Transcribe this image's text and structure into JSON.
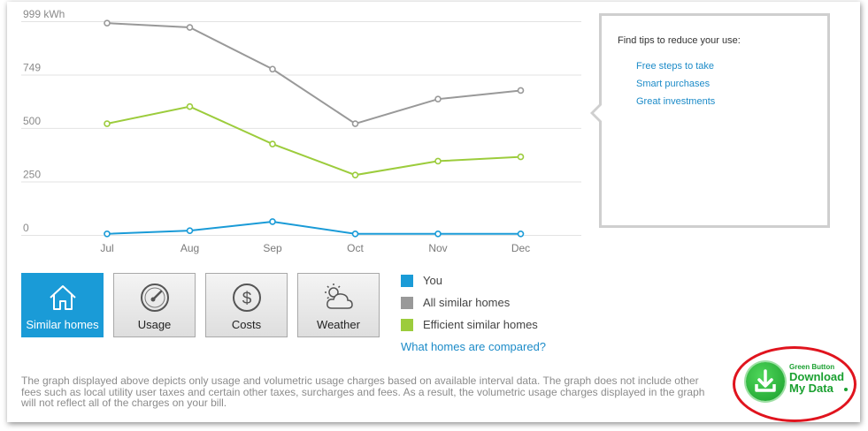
{
  "chart_data": {
    "type": "line",
    "ylabel": "kWh",
    "y_tick_labels": [
      "999 kWh",
      "749",
      "500",
      "250",
      "0"
    ],
    "y_tick_values": [
      999,
      749,
      500,
      250,
      0
    ],
    "ylim": [
      0,
      999
    ],
    "categories": [
      "Jul",
      "Aug",
      "Sep",
      "Oct",
      "Nov",
      "Dec"
    ],
    "grid": true,
    "series": [
      {
        "name": "All similar homes",
        "color": "#999999",
        "values": [
          990,
          970,
          775,
          520,
          635,
          675
        ]
      },
      {
        "name": "Efficient similar homes",
        "color": "#9ccc3c",
        "values": [
          520,
          600,
          425,
          280,
          345,
          365
        ]
      },
      {
        "name": "You",
        "color": "#1a9bd7",
        "values": [
          5,
          20,
          62,
          5,
          5,
          5
        ]
      }
    ]
  },
  "tips": {
    "title": "Find tips to reduce your use:",
    "links": [
      "Free steps to take",
      "Smart purchases",
      "Great investments"
    ]
  },
  "tabs": [
    {
      "label": "Similar homes",
      "icon": "house-icon",
      "active": true
    },
    {
      "label": "Usage",
      "icon": "gauge-icon",
      "active": false
    },
    {
      "label": "Costs",
      "icon": "dollar-icon",
      "active": false
    },
    {
      "label": "Weather",
      "icon": "sun-cloud-icon",
      "active": false
    }
  ],
  "legend": [
    {
      "label": "You",
      "color": "#1a9bd7"
    },
    {
      "label": "All similar homes",
      "color": "#999999"
    },
    {
      "label": "Efficient similar homes",
      "color": "#9ccc3c"
    }
  ],
  "compare_link": "What homes are compared?",
  "disclaimer": "The graph displayed above depicts only usage and volumetric usage charges based on available interval data. The graph does not include other fees such as local utility user taxes and certain other taxes, surcharges and fees. As a result, the volumetric usage charges displayed in the graph will not reflect all of the charges on your bill.",
  "green_button": {
    "small_label": "Green Button",
    "big_label_1": "Download",
    "big_label_2": "My Data"
  }
}
